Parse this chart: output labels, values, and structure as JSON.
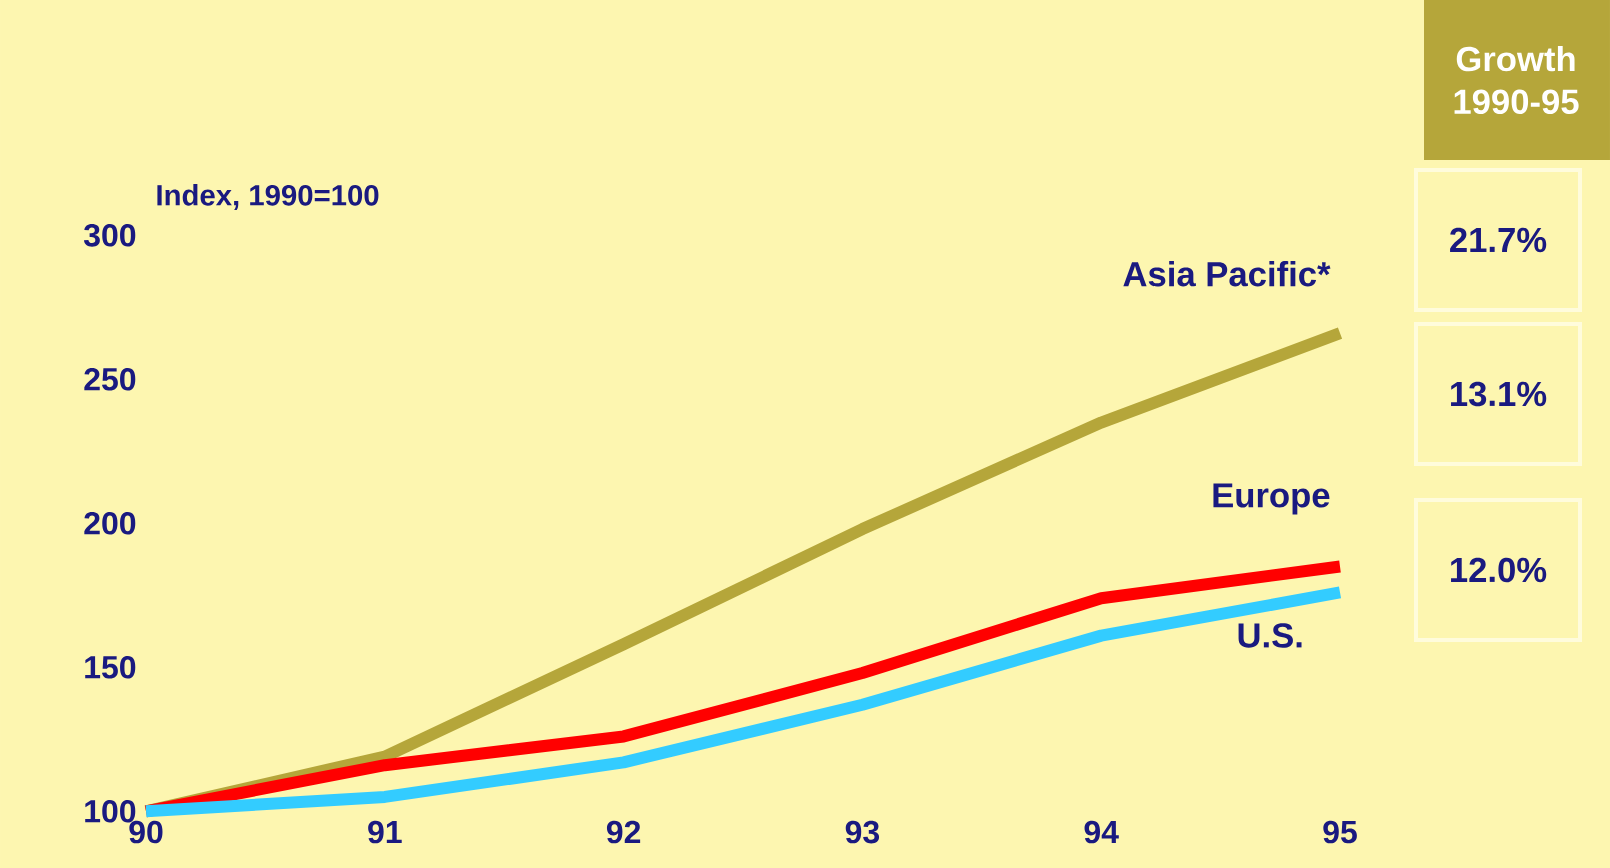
{
  "chart_data": {
    "type": "line",
    "ylabel": "Index, 1990=100",
    "categories": [
      "90",
      "91",
      "92",
      "93",
      "94",
      "95"
    ],
    "series": [
      {
        "name": "Asia Pacific*",
        "color": "#b5a63a",
        "values": [
          100,
          119,
          158,
          198,
          235,
          266
        ]
      },
      {
        "name": "Europe",
        "color": "#ff0000",
        "values": [
          100,
          116,
          126,
          148,
          174,
          185
        ]
      },
      {
        "name": "U.S.",
        "color": "#33ccff",
        "values": [
          100,
          105,
          117,
          137,
          161,
          176
        ]
      }
    ],
    "ylim": [
      100,
      300
    ],
    "yticks": [
      100,
      150,
      200,
      250,
      300
    ],
    "grid": false,
    "marker": "none",
    "line_style": "solid",
    "annotations": [
      "Growth 1990-95",
      "21.7%",
      "13.1%",
      "12.0%"
    ]
  }
}
